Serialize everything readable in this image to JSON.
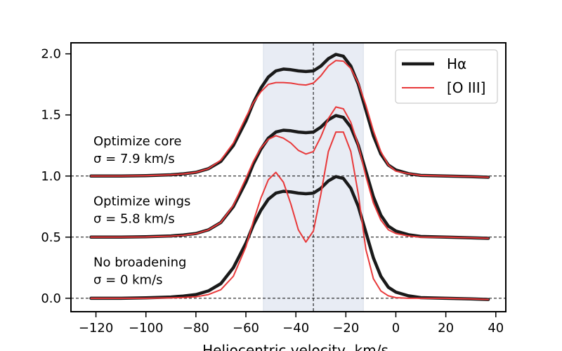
{
  "chart_data": {
    "type": "line",
    "xlabel": "Heliocentric velocity, km/s",
    "ylabel": "",
    "xlim": [
      -130,
      44
    ],
    "ylim": [
      -0.11,
      2.09
    ],
    "xticks": [
      -120,
      -100,
      -80,
      -60,
      -40,
      -20,
      0,
      20,
      40
    ],
    "xtick_labels": [
      "−120",
      "−100",
      "−80",
      "−60",
      "−40",
      "−20",
      "0",
      "20",
      "40"
    ],
    "yticks": [
      0.0,
      0.5,
      1.0,
      1.5,
      2.0
    ],
    "ytick_labels": [
      "0.0",
      "0.5",
      "1.0",
      "1.5",
      "2.0"
    ],
    "grid": false,
    "legend_position": "top-right",
    "shaded_band": {
      "x_min": -53,
      "x_max": -13,
      "color": "#e8ecf4"
    },
    "vertical_line": {
      "x": -33
    },
    "horizontal_lines": [
      0.0,
      0.5,
      1.0
    ],
    "legend": [
      {
        "label": "Hα",
        "color": "#1a1a1a"
      },
      {
        "label": "[O III]",
        "color": "#e8393a"
      }
    ],
    "annotations": [
      {
        "line1": "Optimize core",
        "line2": "σ = 7.9 km/s",
        "x": -121,
        "y": 1.25
      },
      {
        "line1": "Optimize wings",
        "line2": "σ = 5.8 km/s",
        "x": -121,
        "y": 0.76
      },
      {
        "line1": "No broadening",
        "line2": "σ = 0 km/s",
        "x": -121,
        "y": 0.26
      }
    ],
    "series": [
      {
        "name": "Hα",
        "group": "Optimize core",
        "color": "#1a1a1a",
        "x": [
          -122,
          -110,
          -100,
          -90,
          -85,
          -80,
          -75,
          -70,
          -65,
          -60,
          -57,
          -54,
          -51,
          -48,
          -45,
          -42,
          -39,
          -36,
          -33,
          -30,
          -27,
          -24,
          -21,
          -18,
          -15,
          -12,
          -9,
          -6,
          -3,
          0,
          5,
          10,
          20,
          30,
          37
        ],
        "y": [
          1.0,
          1.0,
          1.003,
          1.01,
          1.018,
          1.03,
          1.06,
          1.12,
          1.25,
          1.45,
          1.6,
          1.72,
          1.81,
          1.86,
          1.875,
          1.87,
          1.86,
          1.855,
          1.86,
          1.9,
          1.96,
          1.995,
          1.98,
          1.9,
          1.75,
          1.54,
          1.33,
          1.18,
          1.09,
          1.05,
          1.02,
          1.005,
          1.0,
          0.995,
          0.99
        ]
      },
      {
        "name": "[O III]",
        "group": "Optimize core",
        "color": "#e8393a",
        "x": [
          -122,
          -110,
          -100,
          -90,
          -85,
          -80,
          -75,
          -70,
          -65,
          -60,
          -57,
          -54,
          -51,
          -48,
          -45,
          -42,
          -39,
          -36,
          -33,
          -30,
          -27,
          -24,
          -21,
          -18,
          -15,
          -12,
          -9,
          -6,
          -3,
          0,
          5,
          10,
          20,
          30,
          37
        ],
        "y": [
          1.0,
          1.0,
          1.003,
          1.01,
          1.017,
          1.03,
          1.06,
          1.13,
          1.27,
          1.48,
          1.6,
          1.69,
          1.75,
          1.765,
          1.765,
          1.76,
          1.75,
          1.745,
          1.76,
          1.82,
          1.9,
          1.945,
          1.94,
          1.88,
          1.76,
          1.58,
          1.37,
          1.2,
          1.09,
          1.04,
          1.02,
          1.005,
          1.0,
          0.995,
          0.99
        ]
      },
      {
        "name": "Hα",
        "group": "Optimize wings",
        "color": "#1a1a1a",
        "x": [
          -122,
          -110,
          -100,
          -90,
          -85,
          -80,
          -75,
          -70,
          -65,
          -60,
          -57,
          -54,
          -51,
          -48,
          -45,
          -42,
          -39,
          -36,
          -33,
          -30,
          -27,
          -24,
          -21,
          -18,
          -15,
          -12,
          -9,
          -6,
          -3,
          0,
          5,
          10,
          20,
          30,
          37
        ],
        "y": [
          0.5,
          0.5,
          0.503,
          0.51,
          0.518,
          0.53,
          0.56,
          0.62,
          0.75,
          0.95,
          1.1,
          1.22,
          1.31,
          1.36,
          1.375,
          1.37,
          1.36,
          1.355,
          1.36,
          1.4,
          1.46,
          1.495,
          1.48,
          1.4,
          1.25,
          1.04,
          0.83,
          0.68,
          0.59,
          0.55,
          0.52,
          0.505,
          0.5,
          0.495,
          0.49
        ]
      },
      {
        "name": "[O III]",
        "group": "Optimize wings",
        "color": "#e8393a",
        "x": [
          -122,
          -110,
          -100,
          -90,
          -85,
          -80,
          -75,
          -70,
          -65,
          -60,
          -57,
          -54,
          -51,
          -48,
          -45,
          -42,
          -39,
          -36,
          -33,
          -30,
          -27,
          -24,
          -21,
          -18,
          -15,
          -12,
          -9,
          -6,
          -3,
          0,
          5,
          10,
          20,
          30,
          37
        ],
        "y": [
          0.5,
          0.5,
          0.502,
          0.508,
          0.515,
          0.528,
          0.56,
          0.62,
          0.76,
          0.98,
          1.12,
          1.23,
          1.3,
          1.33,
          1.31,
          1.27,
          1.21,
          1.18,
          1.2,
          1.32,
          1.47,
          1.565,
          1.55,
          1.44,
          1.25,
          1.0,
          0.78,
          0.64,
          0.56,
          0.53,
          0.51,
          0.5,
          0.5,
          0.495,
          0.49
        ]
      },
      {
        "name": "Hα",
        "group": "No broadening",
        "color": "#1a1a1a",
        "x": [
          -122,
          -110,
          -100,
          -90,
          -85,
          -80,
          -75,
          -70,
          -65,
          -60,
          -57,
          -54,
          -51,
          -48,
          -45,
          -42,
          -39,
          -36,
          -33,
          -30,
          -27,
          -24,
          -21,
          -18,
          -15,
          -12,
          -9,
          -6,
          -3,
          0,
          5,
          10,
          20,
          30,
          37
        ],
        "y": [
          0.0,
          0.0,
          0.003,
          0.01,
          0.018,
          0.03,
          0.06,
          0.12,
          0.25,
          0.45,
          0.6,
          0.72,
          0.81,
          0.86,
          0.875,
          0.87,
          0.86,
          0.855,
          0.86,
          0.9,
          0.96,
          0.995,
          0.98,
          0.9,
          0.75,
          0.54,
          0.33,
          0.18,
          0.09,
          0.05,
          0.02,
          0.005,
          0.0,
          -0.005,
          -0.01
        ]
      },
      {
        "name": "[O III]",
        "group": "No broadening",
        "color": "#e8393a",
        "x": [
          -122,
          -110,
          -100,
          -90,
          -85,
          -80,
          -75,
          -70,
          -65,
          -60,
          -57,
          -54,
          -51,
          -48,
          -45,
          -42,
          -39,
          -36,
          -33,
          -30,
          -27,
          -24,
          -21,
          -18,
          -15,
          -12,
          -9,
          -6,
          -3,
          0,
          5,
          10,
          20,
          30,
          37
        ],
        "y": [
          0.0,
          0.0,
          0.0,
          0.003,
          0.006,
          0.012,
          0.03,
          0.07,
          0.18,
          0.42,
          0.63,
          0.82,
          0.97,
          1.03,
          0.95,
          0.77,
          0.56,
          0.46,
          0.55,
          0.85,
          1.2,
          1.36,
          1.36,
          1.2,
          0.85,
          0.4,
          0.16,
          0.06,
          0.02,
          0.005,
          0.0,
          0.0,
          0.0,
          -0.005,
          -0.01
        ]
      }
    ]
  }
}
